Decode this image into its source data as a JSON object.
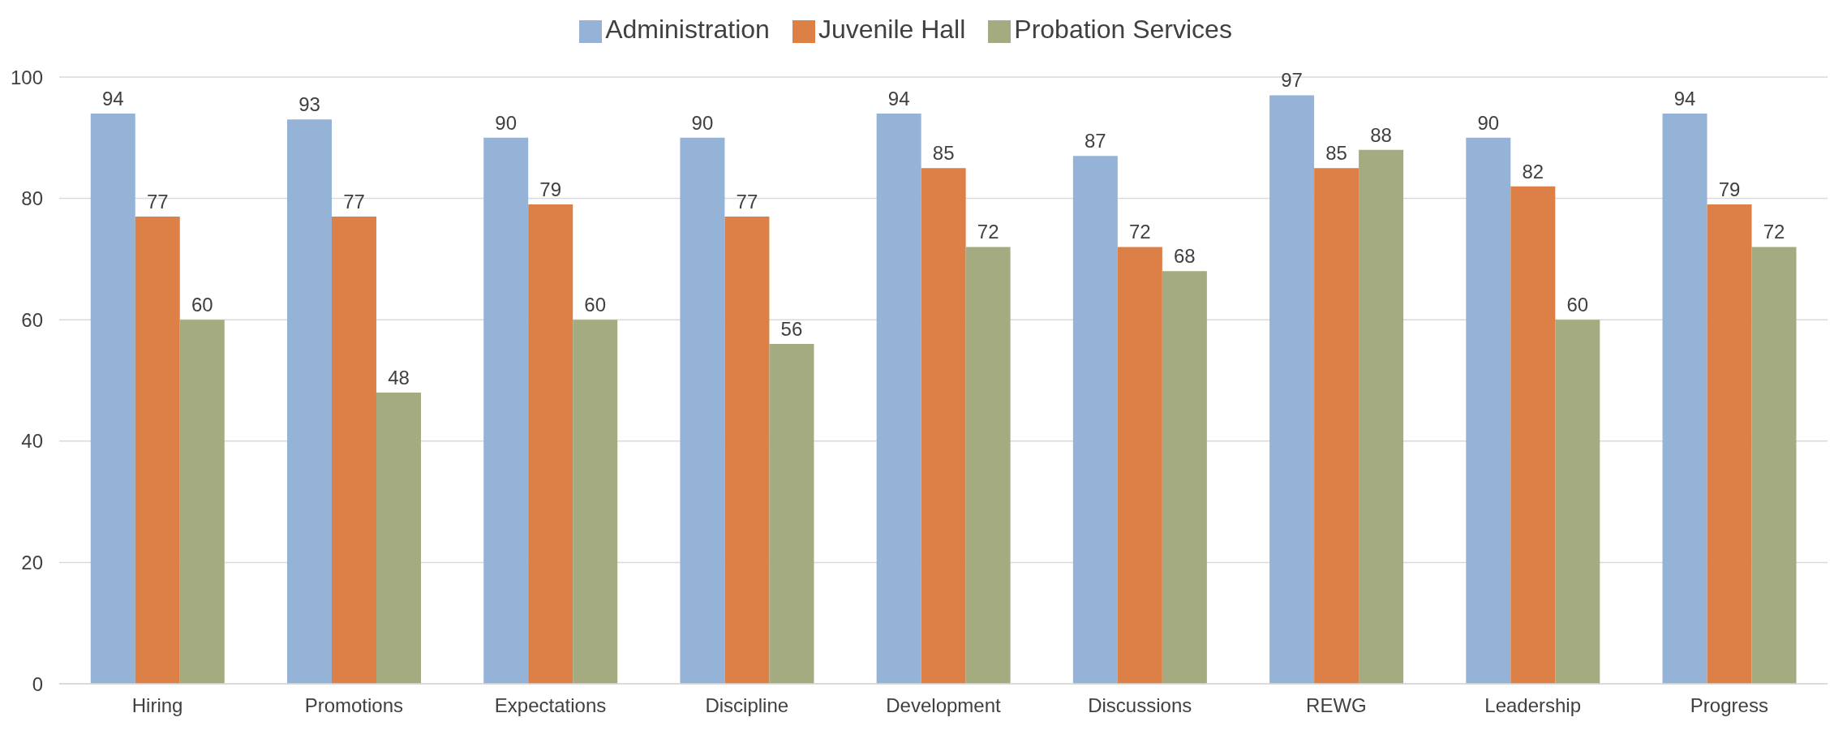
{
  "chart_data": {
    "type": "bar",
    "categories": [
      "Hiring",
      "Promotions",
      "Expectations",
      "Discipline",
      "Development",
      "Discussions",
      "REWG",
      "Leadership",
      "Progress"
    ],
    "series": [
      {
        "name": "Administration",
        "color": "#95b3d7",
        "values": [
          94,
          93,
          90,
          90,
          94,
          87,
          97,
          90,
          94
        ]
      },
      {
        "name": "Juvenile Hall",
        "color": "#dd8047",
        "values": [
          77,
          77,
          79,
          77,
          85,
          72,
          85,
          82,
          79
        ]
      },
      {
        "name": "Probation Services",
        "color": "#a5ab81",
        "values": [
          60,
          48,
          60,
          56,
          72,
          68,
          88,
          60,
          72
        ]
      }
    ],
    "ylim": [
      0,
      100
    ],
    "yticks": [
      0,
      20,
      40,
      60,
      80,
      100
    ],
    "grid": "y",
    "legend": "top",
    "data_labels": true
  }
}
